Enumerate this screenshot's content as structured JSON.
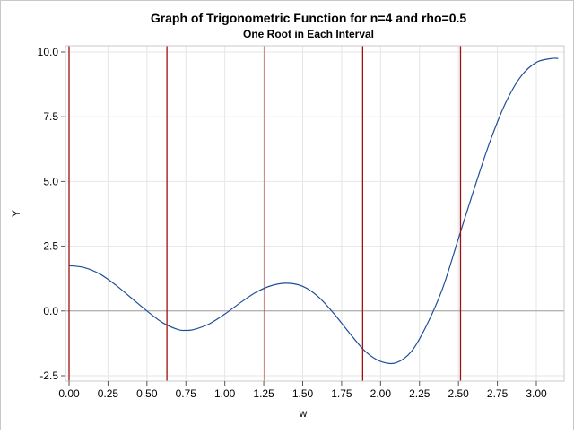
{
  "chart_data": {
    "type": "line",
    "title": "Graph of Trigonometric Function for n=4 and rho=0.5",
    "subtitle": "One Root in Each Interval",
    "xlabel": "w",
    "ylabel": "Y",
    "xlim": [
      0,
      3.14159
    ],
    "ylim": [
      -2.5,
      10
    ],
    "xticks": [
      "0.00",
      "0.25",
      "0.50",
      "0.75",
      "1.00",
      "1.25",
      "1.50",
      "1.75",
      "2.00",
      "2.25",
      "2.50",
      "2.75",
      "3.00"
    ],
    "yticks": [
      "-2.5",
      "0.0",
      "2.5",
      "5.0",
      "7.5",
      "10.0"
    ],
    "grid": true,
    "function": {
      "n": 4,
      "rho": 0.5
    },
    "reference_lines": {
      "horizontal_y": 0,
      "vertical_x": [
        0,
        0.6283,
        1.2566,
        1.885,
        2.5133
      ],
      "vertical_color": "#a01010"
    },
    "series": [
      {
        "color": "#1f4e96",
        "x": [
          0,
          0.1,
          0.2,
          0.3,
          0.4,
          0.5,
          0.6,
          0.7,
          0.75,
          0.8,
          0.9,
          1.0,
          1.1,
          1.2,
          1.3,
          1.4,
          1.5,
          1.6,
          1.7,
          1.8,
          1.9,
          2.0,
          2.1,
          2.2,
          2.3,
          2.4,
          2.5,
          2.6,
          2.7,
          2.8,
          2.9,
          3.0,
          3.1,
          3.14
        ],
        "y": [
          1.75,
          1.67,
          1.42,
          1.0,
          0.5,
          0.0,
          -0.45,
          -0.72,
          -0.75,
          -0.72,
          -0.5,
          -0.12,
          0.32,
          0.72,
          0.98,
          1.07,
          0.95,
          0.55,
          -0.1,
          -0.85,
          -1.55,
          -1.95,
          -2.0,
          -1.55,
          -0.5,
          0.9,
          2.8,
          4.7,
          6.5,
          8.0,
          9.05,
          9.6,
          9.75,
          9.75
        ]
      }
    ]
  }
}
